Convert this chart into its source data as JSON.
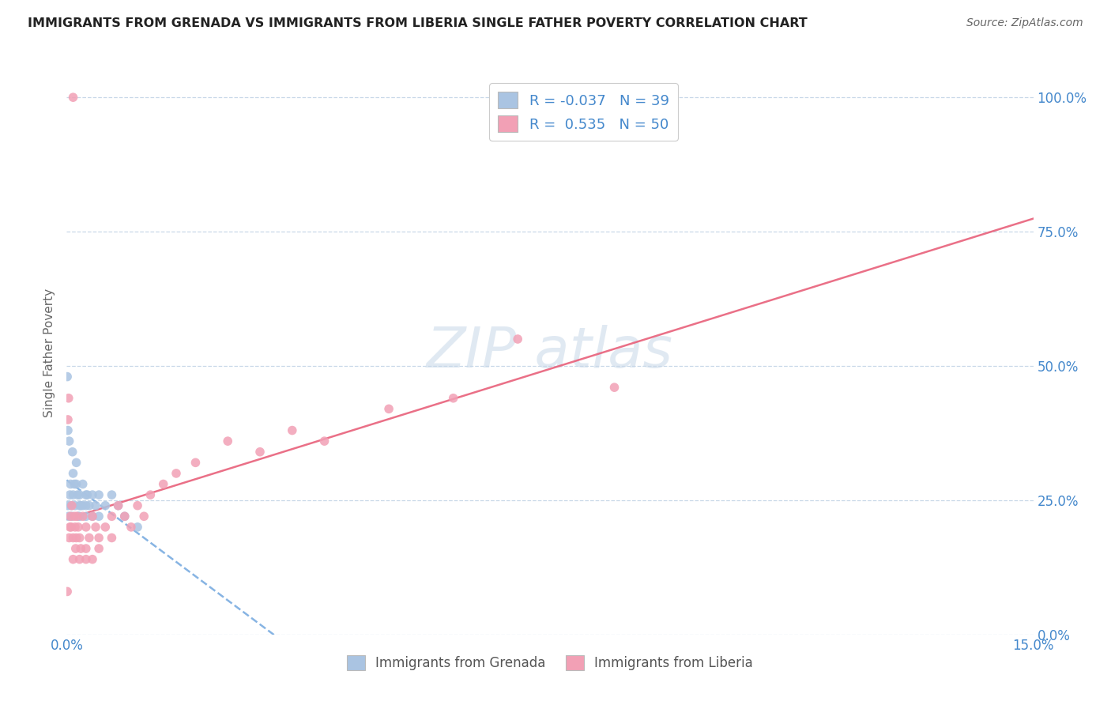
{
  "title": "IMMIGRANTS FROM GRENADA VS IMMIGRANTS FROM LIBERIA SINGLE FATHER POVERTY CORRELATION CHART",
  "source": "Source: ZipAtlas.com",
  "ylabel": "Single Father Poverty",
  "legend1_label": "Immigrants from Grenada",
  "legend2_label": "Immigrants from Liberia",
  "R1": -0.037,
  "N1": 39,
  "R2": 0.535,
  "N2": 50,
  "color1": "#aac4e2",
  "color2": "#f2a0b5",
  "trendline1_color": "#7aace0",
  "trendline2_color": "#e8607a",
  "background_color": "#ffffff",
  "grid_color": "#c8d8e8",
  "title_color": "#222222",
  "axis_label_color": "#4488cc",
  "grenada_x": [
    0.0002,
    0.0003,
    0.0005,
    0.0006,
    0.0007,
    0.0008,
    0.001,
    0.001,
    0.0012,
    0.0013,
    0.0015,
    0.0015,
    0.0017,
    0.0018,
    0.002,
    0.002,
    0.002,
    0.0022,
    0.0025,
    0.0025,
    0.003,
    0.003,
    0.003,
    0.0032,
    0.0035,
    0.004,
    0.004,
    0.0045,
    0.005,
    0.005,
    0.006,
    0.007,
    0.008,
    0.009,
    0.0001,
    0.0002,
    0.0004,
    0.0009,
    0.011
  ],
  "grenada_y": [
    0.24,
    0.22,
    0.26,
    0.28,
    0.24,
    0.22,
    0.3,
    0.26,
    0.28,
    0.24,
    0.32,
    0.28,
    0.26,
    0.22,
    0.24,
    0.26,
    0.22,
    0.24,
    0.28,
    0.24,
    0.26,
    0.22,
    0.24,
    0.26,
    0.24,
    0.22,
    0.26,
    0.24,
    0.22,
    0.26,
    0.24,
    0.26,
    0.24,
    0.22,
    0.48,
    0.38,
    0.36,
    0.34,
    0.2
  ],
  "liberia_x": [
    0.0001,
    0.0002,
    0.0003,
    0.0004,
    0.0005,
    0.0006,
    0.0007,
    0.0008,
    0.001,
    0.001,
    0.0012,
    0.0013,
    0.0014,
    0.0015,
    0.0016,
    0.0018,
    0.002,
    0.002,
    0.0022,
    0.0025,
    0.003,
    0.003,
    0.003,
    0.0035,
    0.004,
    0.004,
    0.0045,
    0.005,
    0.005,
    0.006,
    0.007,
    0.007,
    0.008,
    0.009,
    0.01,
    0.011,
    0.012,
    0.013,
    0.015,
    0.017,
    0.02,
    0.025,
    0.03,
    0.035,
    0.04,
    0.05,
    0.06,
    0.07,
    0.085,
    0.001
  ],
  "liberia_y": [
    0.08,
    0.4,
    0.44,
    0.18,
    0.2,
    0.22,
    0.2,
    0.24,
    0.14,
    0.18,
    0.22,
    0.2,
    0.16,
    0.18,
    0.22,
    0.2,
    0.14,
    0.18,
    0.16,
    0.22,
    0.14,
    0.16,
    0.2,
    0.18,
    0.22,
    0.14,
    0.2,
    0.18,
    0.16,
    0.2,
    0.22,
    0.18,
    0.24,
    0.22,
    0.2,
    0.24,
    0.22,
    0.26,
    0.28,
    0.3,
    0.32,
    0.36,
    0.34,
    0.38,
    0.36,
    0.42,
    0.44,
    0.55,
    0.46,
    1.0
  ],
  "xlim": [
    0.0,
    0.15
  ],
  "ylim": [
    0.0,
    1.05
  ],
  "right_yticks": [
    0.0,
    0.25,
    0.5,
    0.75,
    1.0
  ],
  "right_yticklabels": [
    "0.0%",
    "25.0%",
    "50.0%",
    "75.0%",
    "100.0%"
  ]
}
